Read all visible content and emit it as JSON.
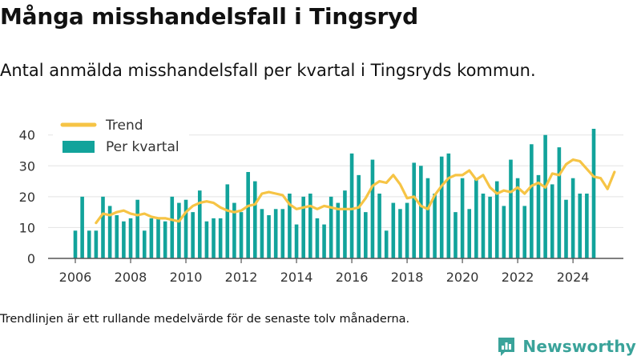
{
  "title": "Många misshandelsfall i Tingsryd",
  "subtitle": "Antal anmälda misshandelsfall per kvartal i Tingsryds kommun.",
  "footnote": "Trendlinjen är ett rullande medelvärde för de senaste tolv månaderna.",
  "brand": {
    "name": "Newsworthy",
    "logo_icon": "newsworthy-logo-icon",
    "color": "#3aa39a"
  },
  "chart_data": {
    "type": "bar",
    "title": "",
    "xlabel": "",
    "ylabel": "",
    "ylim": [
      0,
      42
    ],
    "yticks": [
      0,
      10,
      20,
      30,
      40
    ],
    "xticks": [
      2006,
      2008,
      2010,
      2012,
      2014,
      2016,
      2018,
      2020,
      2022,
      2024
    ],
    "grid": true,
    "legend_position": "top-left",
    "categories": [
      "2006 Q1",
      "2006 Q2",
      "2006 Q3",
      "2006 Q4",
      "2007 Q1",
      "2007 Q2",
      "2007 Q3",
      "2007 Q4",
      "2008 Q1",
      "2008 Q2",
      "2008 Q3",
      "2008 Q4",
      "2009 Q1",
      "2009 Q2",
      "2009 Q3",
      "2009 Q4",
      "2010 Q1",
      "2010 Q2",
      "2010 Q3",
      "2010 Q4",
      "2011 Q1",
      "2011 Q2",
      "2011 Q3",
      "2011 Q4",
      "2012 Q1",
      "2012 Q2",
      "2012 Q3",
      "2012 Q4",
      "2013 Q1",
      "2013 Q2",
      "2013 Q3",
      "2013 Q4",
      "2014 Q1",
      "2014 Q2",
      "2014 Q3",
      "2014 Q4",
      "2015 Q1",
      "2015 Q2",
      "2015 Q3",
      "2015 Q4",
      "2016 Q1",
      "2016 Q2",
      "2016 Q3",
      "2016 Q4",
      "2017 Q1",
      "2017 Q2",
      "2017 Q3",
      "2017 Q4",
      "2018 Q1",
      "2018 Q2",
      "2018 Q3",
      "2018 Q4",
      "2019 Q1",
      "2019 Q2",
      "2019 Q3",
      "2019 Q4",
      "2020 Q1",
      "2020 Q2",
      "2020 Q3",
      "2020 Q4",
      "2021 Q1",
      "2021 Q2",
      "2021 Q3",
      "2021 Q4",
      "2022 Q1",
      "2022 Q2",
      "2022 Q3",
      "2022 Q4",
      "2023 Q1",
      "2023 Q2",
      "2023 Q3",
      "2023 Q4",
      "2024 Q1",
      "2024 Q2",
      "2024 Q3",
      "2024 Q4"
    ],
    "series": [
      {
        "name": "Per kvartal",
        "kind": "bar",
        "color": "#12a39b",
        "values": [
          9,
          20,
          9,
          9,
          20,
          17,
          14,
          12,
          13,
          19,
          9,
          13,
          13,
          12,
          20,
          18,
          19,
          15,
          22,
          12,
          13,
          13,
          24,
          18,
          15,
          28,
          25,
          16,
          14,
          16,
          16,
          21,
          11,
          20,
          21,
          13,
          11,
          20,
          18,
          22,
          34,
          27,
          15,
          32,
          21,
          9,
          18,
          16,
          18,
          31,
          30,
          26,
          21,
          33,
          34,
          15,
          26,
          16,
          26,
          21,
          20,
          25,
          17,
          32,
          26,
          17,
          37,
          27,
          40,
          24,
          36,
          19,
          26,
          21,
          21,
          42
        ]
      },
      {
        "name": "Trend",
        "kind": "line",
        "color": "#f6c445",
        "start_index": 3,
        "values": [
          11.5,
          14.5,
          14.0,
          15.0,
          15.5,
          14.5,
          14.0,
          14.5,
          13.5,
          13.0,
          13.0,
          12.5,
          12.0,
          15.0,
          17.0,
          18.0,
          18.5,
          18.0,
          16.5,
          15.5,
          15.0,
          15.5,
          17.0,
          17.5,
          21.0,
          21.5,
          21.0,
          20.5,
          17.5,
          16.0,
          16.5,
          17.0,
          16.0,
          17.0,
          16.5,
          16.0,
          16.0,
          16.0,
          16.5,
          19.5,
          23.5,
          25.0,
          24.5,
          27.0,
          24.0,
          19.5,
          20.0,
          17.0,
          16.0,
          20.5,
          23.5,
          26.0,
          27.0,
          27.0,
          28.5,
          25.5,
          27.0,
          23.0,
          21.0,
          22.0,
          21.5,
          23.0,
          21.0,
          23.5,
          24.5,
          23.0,
          27.5,
          27.0,
          30.5,
          32.0,
          31.5,
          29.0,
          26.5,
          26.0,
          22.5,
          28.0
        ]
      }
    ]
  }
}
